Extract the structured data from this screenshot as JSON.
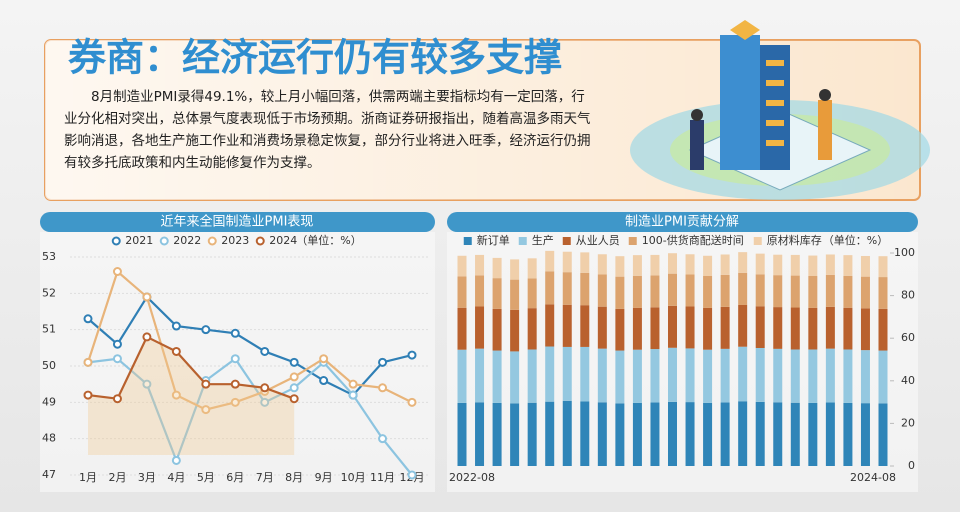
{
  "header": {
    "title": "券商：经济运行仍有较多支撑",
    "paragraph": "8月制造业PMI录得49.1%，较上月小幅回落，供需两端主要指标均有一定回落，行业分化相对突出，总体景气度表现低于市场预期。浙商证券研报指出，随着高温多雨天气影响消退，各地生产施工作业和消费场景稳定恢复，部分行业将进入旺季，经济运行仍拥有较多托底政策和内生动能修复作为支撑。"
  },
  "chart_data": [
    {
      "type": "line",
      "title": "近年来全国制造业PMI表现",
      "unit_note": "（单位：%）",
      "categories": [
        "1月",
        "2月",
        "3月",
        "4月",
        "5月",
        "6月",
        "7月",
        "8月",
        "9月",
        "10月",
        "11月",
        "12月"
      ],
      "ylim": [
        47,
        53
      ],
      "yticks": [
        47,
        48,
        49,
        50,
        51,
        52,
        53
      ],
      "series": [
        {
          "name": "2021",
          "color": "#2f7fb5",
          "values": [
            51.3,
            50.6,
            51.9,
            51.1,
            51.0,
            50.9,
            50.4,
            50.1,
            49.6,
            49.2,
            50.1,
            50.3
          ]
        },
        {
          "name": "2022",
          "color": "#8cc4e0",
          "values": [
            50.1,
            50.2,
            49.5,
            47.4,
            49.6,
            50.2,
            49.0,
            49.4,
            50.1,
            49.2,
            48.0,
            47.0
          ]
        },
        {
          "name": "2023",
          "color": "#e8b47a",
          "values": [
            50.1,
            52.6,
            51.9,
            49.2,
            48.8,
            49.0,
            49.3,
            49.7,
            50.2,
            49.5,
            49.4,
            49.0
          ]
        },
        {
          "name": "2024",
          "color": "#b8612e",
          "values": [
            49.2,
            49.1,
            50.8,
            50.4,
            49.5,
            49.5,
            49.4,
            49.1,
            null,
            null,
            null,
            null
          ]
        }
      ]
    },
    {
      "type": "stacked_bar",
      "title": "制造业PMI贡献分解",
      "unit_note": "（单位：%）",
      "categories": [
        "2022-08",
        null,
        null,
        null,
        null,
        null,
        null,
        null,
        null,
        null,
        null,
        null,
        null,
        null,
        null,
        null,
        null,
        null,
        null,
        null,
        null,
        null,
        null,
        null,
        "2024-08"
      ],
      "ylim": [
        0,
        100
      ],
      "yticks": [
        0,
        20,
        40,
        60,
        80,
        100
      ],
      "axis_side": "right",
      "series": [
        {
          "name": "新订单",
          "color": "#2f85b8",
          "values": [
            29.6,
            29.9,
            29.6,
            29.4,
            29.7,
            30.2,
            30.6,
            30.3,
            29.9,
            29.4,
            29.6,
            29.8,
            30.1,
            30.0,
            29.6,
            29.8,
            30.4,
            30.1,
            29.9,
            29.7,
            29.6,
            29.8,
            29.6,
            29.5,
            29.4
          ]
        },
        {
          "name": "生产",
          "color": "#94c8e0",
          "values": [
            25.0,
            25.2,
            24.6,
            24.4,
            25.0,
            25.9,
            25.3,
            25.6,
            25.2,
            24.8,
            25.0,
            25.1,
            25.4,
            25.2,
            25.0,
            25.2,
            25.6,
            25.3,
            25.1,
            25.0,
            25.1,
            25.3,
            25.1,
            24.9,
            24.8
          ]
        },
        {
          "name": "从业人员",
          "color": "#b9612e",
          "values": [
            19.7,
            19.8,
            19.6,
            19.5,
            19.4,
            19.8,
            19.8,
            19.6,
            19.7,
            19.6,
            19.6,
            19.6,
            19.7,
            19.7,
            19.6,
            19.7,
            19.6,
            19.6,
            19.6,
            19.7,
            19.5,
            19.6,
            19.6,
            19.6,
            19.6
          ]
        },
        {
          "name": "100-供货商配送时间",
          "color": "#dca36e",
          "values": [
            14.7,
            14.6,
            14.4,
            14.2,
            14.0,
            15.5,
            15.3,
            15.2,
            15.1,
            15.1,
            15.1,
            15.0,
            15.1,
            15.0,
            15.0,
            15.0,
            15.1,
            15.0,
            15.0,
            15.0,
            15.0,
            15.0,
            15.0,
            14.9,
            14.9
          ]
        },
        {
          "name": "原材料库存",
          "color": "#f0cfaa",
          "values": [
            9.7,
            9.6,
            9.5,
            9.5,
            9.4,
            9.6,
            9.6,
            9.6,
            9.5,
            9.6,
            9.7,
            9.6,
            9.6,
            9.5,
            9.5,
            9.6,
            9.7,
            9.7,
            9.6,
            9.7,
            9.6,
            9.6,
            9.7,
            9.7,
            9.8
          ]
        }
      ]
    }
  ]
}
